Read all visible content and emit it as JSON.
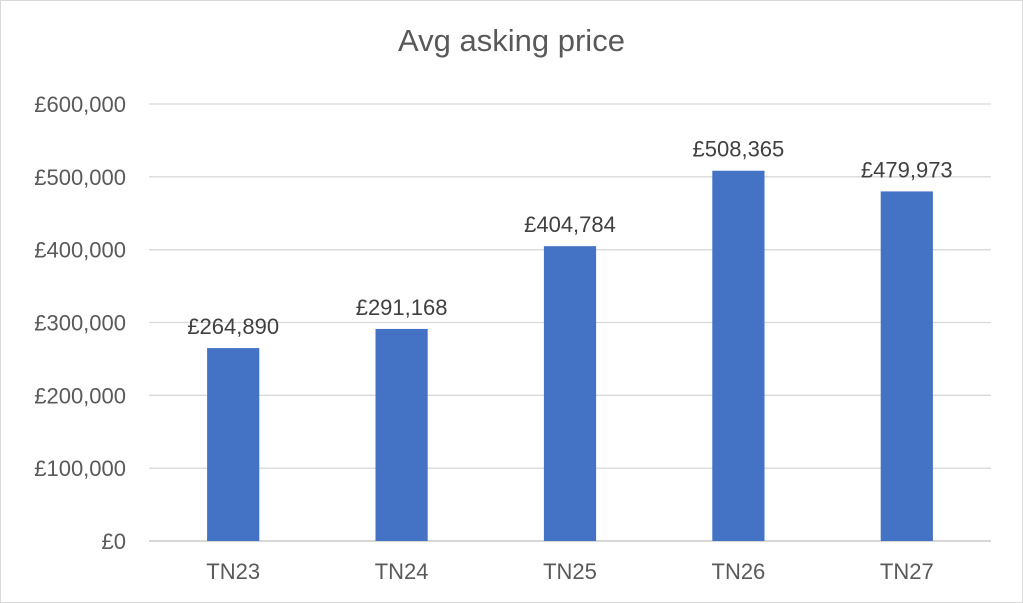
{
  "chart_data": {
    "type": "bar",
    "title": "Avg asking price",
    "xlabel": "",
    "ylabel": "",
    "categories": [
      "TN23",
      "TN24",
      "TN25",
      "TN26",
      "TN27"
    ],
    "values": [
      264890,
      291168,
      404784,
      508365,
      479973
    ],
    "data_labels": [
      "£264,890",
      "£291,168",
      "£404,784",
      "£508,365",
      "£479,973"
    ],
    "ylim": [
      0,
      600000
    ],
    "y_ticks": [
      0,
      100000,
      200000,
      300000,
      400000,
      500000,
      600000
    ],
    "y_tick_labels": [
      "£0",
      "£100,000",
      "£200,000",
      "£300,000",
      "£400,000",
      "£500,000",
      "£600,000"
    ],
    "grid": true,
    "legend": "none",
    "bar_color": "#4472C4"
  }
}
